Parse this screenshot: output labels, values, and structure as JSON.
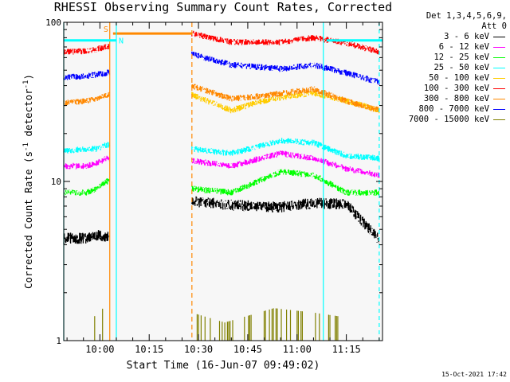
{
  "chart_data": {
    "type": "line",
    "title": "RHESSI Observing Summary Count Rates, Corrected",
    "xlabel": "Start Time (16-Jun-07 09:49:02)",
    "ylabel": "Corrected Count Rate (s",
    "ylabel_sup": "-1",
    "ylabel_mid": " detector",
    "ylabel_end": ")",
    "xscale": "linear",
    "yscale": "log",
    "xlim": [
      "09:49",
      "11:26"
    ],
    "ylim": [
      1,
      100
    ],
    "x_ticks": [
      "10:00",
      "10:15",
      "10:30",
      "10:45",
      "11:00",
      "11:15"
    ],
    "y_ticks": [
      "1",
      "10",
      "100"
    ],
    "legend_header": [
      "Det 1,3,4,5,6,9,",
      "Att 0"
    ],
    "legend_position": "right",
    "timestamp": "15-Oct-2021 17:42",
    "series": [
      {
        "name": "3 - 6 keV",
        "color": "#000000",
        "x": [
          "09:49",
          "09:56",
          "09:59",
          "10:02",
          "10:28",
          "10:40",
          "10:55",
          "11:05",
          "11:15",
          "11:25"
        ],
        "values": [
          4.4,
          4.4,
          4.6,
          4.5,
          7.5,
          7.1,
          6.9,
          7.3,
          7.2,
          4.3
        ]
      },
      {
        "name": "6 - 12 keV",
        "color": "#ff00ff",
        "x": [
          "09:49",
          "09:56",
          "09:59",
          "10:02",
          "10:28",
          "10:40",
          "10:55",
          "11:05",
          "11:15",
          "11:25"
        ],
        "values": [
          12.5,
          12.5,
          13,
          14,
          13.5,
          12.5,
          15,
          14,
          12,
          11
        ]
      },
      {
        "name": "12 - 25 keV",
        "color": "#00ff00",
        "x": [
          "09:49",
          "09:56",
          "09:59",
          "10:02",
          "10:28",
          "10:40",
          "10:55",
          "11:05",
          "11:15",
          "11:25"
        ],
        "values": [
          8.5,
          8.5,
          9,
          10,
          9,
          8.5,
          11.5,
          11,
          8.5,
          8.5
        ]
      },
      {
        "name": "25 - 50 keV",
        "color": "#00ffff",
        "x": [
          "09:49",
          "09:56",
          "09:59",
          "10:02",
          "10:28",
          "10:40",
          "10:55",
          "11:05",
          "11:15",
          "11:25"
        ],
        "values": [
          15.5,
          16,
          16,
          17,
          16,
          15,
          18,
          17.5,
          14.5,
          14
        ]
      },
      {
        "name": "50 - 100 keV",
        "color": "#ffcc00",
        "x": [
          "10:28",
          "10:40",
          "10:52",
          "11:05",
          "11:15",
          "11:25"
        ],
        "values": [
          35,
          28,
          33,
          36,
          32,
          28
        ]
      },
      {
        "name": "100 - 300 keV",
        "color": "#ff0000",
        "x": [
          "09:49",
          "09:56",
          "09:59",
          "10:02",
          "10:28",
          "10:40",
          "10:55",
          "11:05",
          "11:15",
          "11:25"
        ],
        "values": [
          65,
          66,
          68,
          70,
          85,
          75,
          75,
          80,
          74,
          65
        ]
      },
      {
        "name": "300 - 800 keV",
        "color": "#ff8800",
        "x": [
          "09:49",
          "09:56",
          "09:59",
          "10:02",
          "10:28",
          "10:40",
          "10:52",
          "11:05",
          "11:15",
          "11:25"
        ],
        "values": [
          31,
          32,
          33,
          35,
          40,
          33,
          35,
          38,
          32,
          28
        ]
      },
      {
        "name": "800 - 7000 keV",
        "color": "#0000ff",
        "x": [
          "09:49",
          "09:56",
          "09:59",
          "10:02",
          "10:28",
          "10:40",
          "10:55",
          "11:05",
          "11:15",
          "11:25"
        ],
        "values": [
          45,
          46,
          47,
          48,
          63,
          54,
          51,
          54,
          48,
          42
        ]
      },
      {
        "name": "7000 - 15000 keV",
        "color": "#808000",
        "x": [
          "09:58",
          "10:01",
          "10:28",
          "10:38",
          "10:53",
          "11:05",
          "11:15"
        ],
        "values": [
          1.4,
          1.6,
          1.5,
          1.3,
          1.6,
          1.5,
          1.4
        ]
      }
    ],
    "annotations": {
      "s_label": "S",
      "n_label": "N",
      "saa_segment": {
        "x": [
          "10:04",
          "10:28"
        ],
        "y": 85
      },
      "night_segments": [
        {
          "x": [
            "09:49",
            "10:05"
          ],
          "y": 77
        },
        {
          "x": [
            "11:09",
            "11:26"
          ],
          "y": 77
        }
      ],
      "orange_markers": [
        "10:03",
        "10:28"
      ],
      "cyan_markers": [
        "09:49",
        "10:05",
        "11:08",
        "11:25"
      ]
    }
  }
}
